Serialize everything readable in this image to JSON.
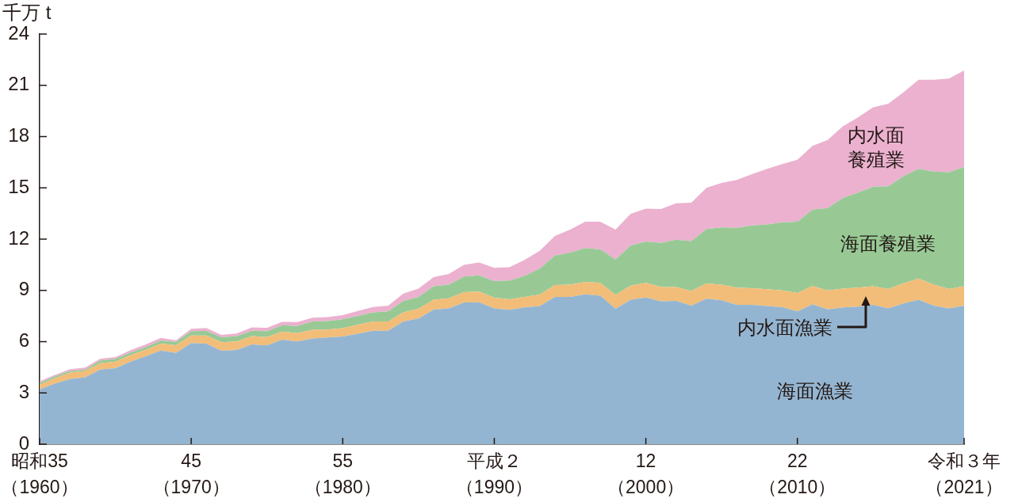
{
  "chart_data": {
    "type": "area",
    "stacked": true,
    "ylabel": "千万 t",
    "categories": [
      "昭和35（1960）",
      null,
      null,
      null,
      null,
      null,
      null,
      null,
      null,
      null,
      "45（1970）",
      null,
      null,
      null,
      null,
      null,
      null,
      null,
      null,
      null,
      "55（1980）",
      null,
      null,
      null,
      null,
      null,
      null,
      null,
      null,
      null,
      "平成２（1990）",
      null,
      null,
      null,
      null,
      null,
      null,
      null,
      null,
      null,
      "12（2000）",
      null,
      null,
      null,
      null,
      null,
      null,
      null,
      null,
      null,
      "22（2010）",
      null,
      null,
      null,
      null,
      null,
      null,
      null,
      null,
      null,
      null,
      "令和３年（2021）"
    ],
    "ylim": [
      0,
      24
    ],
    "yticks": [
      0,
      3,
      6,
      9,
      12,
      15,
      18,
      21,
      24
    ],
    "series": [
      {
        "name": "海面漁業",
        "color": "#94b5d1",
        "values": [
          3.21,
          3.55,
          3.81,
          3.92,
          4.37,
          4.45,
          4.83,
          5.14,
          5.48,
          5.34,
          5.92,
          5.88,
          5.47,
          5.51,
          5.84,
          5.78,
          6.12,
          6.01,
          6.19,
          6.24,
          6.3,
          6.46,
          6.64,
          6.64,
          7.18,
          7.35,
          7.88,
          7.95,
          8.29,
          8.31,
          7.95,
          7.86,
          8.0,
          8.08,
          8.62,
          8.62,
          8.77,
          8.69,
          7.92,
          8.46,
          8.58,
          8.36,
          8.39,
          8.11,
          8.51,
          8.42,
          8.15,
          8.15,
          8.09,
          8.02,
          7.77,
          8.19,
          7.89,
          8.0,
          8.05,
          8.15,
          7.95,
          8.23,
          8.46,
          8.11,
          7.95,
          8.11
        ]
      },
      {
        "name": "内水面漁業",
        "color": "#f2bd79",
        "values": [
          0.26,
          0.31,
          0.38,
          0.36,
          0.37,
          0.38,
          0.38,
          0.38,
          0.4,
          0.45,
          0.44,
          0.48,
          0.49,
          0.5,
          0.49,
          0.49,
          0.47,
          0.49,
          0.51,
          0.47,
          0.49,
          0.54,
          0.54,
          0.54,
          0.54,
          0.57,
          0.58,
          0.59,
          0.61,
          0.62,
          0.62,
          0.62,
          0.62,
          0.68,
          0.69,
          0.72,
          0.73,
          0.75,
          0.81,
          0.82,
          0.86,
          0.84,
          0.81,
          0.86,
          0.9,
          0.92,
          1.01,
          0.98,
          0.98,
          0.98,
          1.08,
          1.06,
          1.11,
          1.11,
          1.11,
          1.09,
          1.13,
          1.19,
          1.24,
          1.23,
          1.13,
          1.13
        ]
      },
      {
        "name": "海面養殖業",
        "color": "#98c995",
        "values": [
          0.11,
          0.11,
          0.1,
          0.09,
          0.16,
          0.16,
          0.15,
          0.16,
          0.19,
          0.2,
          0.25,
          0.27,
          0.29,
          0.32,
          0.31,
          0.34,
          0.37,
          0.42,
          0.48,
          0.5,
          0.52,
          0.51,
          0.54,
          0.59,
          0.67,
          0.7,
          0.78,
          0.8,
          0.91,
          0.95,
          0.97,
          1.1,
          1.23,
          1.51,
          1.73,
          1.87,
          1.98,
          1.96,
          2.08,
          2.35,
          2.42,
          2.58,
          2.77,
          2.91,
          3.18,
          3.34,
          3.5,
          3.67,
          3.79,
          3.99,
          4.17,
          4.48,
          4.82,
          5.3,
          5.56,
          5.83,
          6.01,
          6.26,
          6.41,
          6.61,
          6.83,
          6.98
        ]
      },
      {
        "name": "内水面養殖業",
        "color": "#ebb1cf",
        "values": [
          0.1,
          0.08,
          0.1,
          0.11,
          0.1,
          0.11,
          0.14,
          0.16,
          0.15,
          0.09,
          0.14,
          0.17,
          0.14,
          0.14,
          0.19,
          0.2,
          0.2,
          0.23,
          0.22,
          0.23,
          0.24,
          0.29,
          0.31,
          0.34,
          0.43,
          0.49,
          0.54,
          0.62,
          0.69,
          0.75,
          0.78,
          0.78,
          0.93,
          1.05,
          1.15,
          1.35,
          1.54,
          1.62,
          1.75,
          1.85,
          1.92,
          1.98,
          2.13,
          2.25,
          2.41,
          2.61,
          2.8,
          3.0,
          3.25,
          3.4,
          3.63,
          3.73,
          3.98,
          4.19,
          4.4,
          4.64,
          4.83,
          4.91,
          5.22,
          5.38,
          5.48,
          5.65
        ]
      }
    ]
  }
}
